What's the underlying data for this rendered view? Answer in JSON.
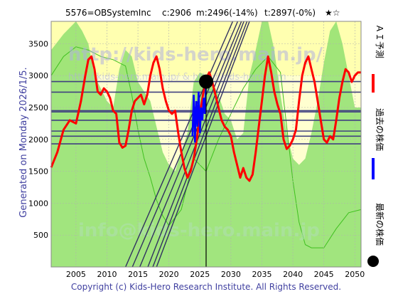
{
  "header": {
    "title": "5576=OBSystemInc",
    "close": "c:2906",
    "min": "m:2496(-14%)",
    "target": "t:2897(-0%)",
    "rating": "★☆"
  },
  "side_label": "Generated on Monday 2026/1/5.",
  "copyright": "Copyright (c) Kids-Hero Research Institute. All Rights Reserved.",
  "watermarks": {
    "main": "http://kids-hero.main.jp/",
    "sub": "http://kids-hero.main.jp/ & http://kids-hero.com",
    "info": "info@kids-hero.main.jp"
  },
  "legend": {
    "ai_label": "ＡＩ予測",
    "past_label": "過去の株価",
    "latest_label": "最新の株価"
  },
  "colors": {
    "plot_bg": "#ffffd0",
    "upper_band": "#ffffb0",
    "green_fill": "#90e070",
    "green_line": "#40c020",
    "ai": "#ff0000",
    "past": "#0000ff",
    "latest": "#000000",
    "hlines": "#404080",
    "diag": "#303060",
    "vgrid": "#b0b0b0"
  },
  "chart_data": {
    "type": "line",
    "xlim": [
      2001,
      2051
    ],
    "ylim": [
      0,
      3850
    ],
    "x_ticks": [
      "2005",
      "2010",
      "2015",
      "2020",
      "2025",
      "2030",
      "2035",
      "2040",
      "2045",
      "2050"
    ],
    "y_ticks": [
      "500",
      "1000",
      "1500",
      "2000",
      "2500",
      "3000",
      "3500"
    ],
    "horizontal_levels": [
      2906,
      2740,
      2450,
      2430,
      2300,
      2130,
      2050,
      1930
    ],
    "latest_point": {
      "x": 2026.0,
      "y": 2906
    },
    "vertical_marker_x": 2026.0,
    "series": [
      {
        "role": "ai_prediction",
        "x": [
          2001.0,
          2002.0,
          2003.0,
          2004.0,
          2005.0,
          2005.8,
          2006.5,
          2007.0,
          2007.5,
          2008.0,
          2008.5,
          2009.0,
          2009.5,
          2010.0,
          2010.5,
          2011.0,
          2011.5,
          2012.0,
          2012.5,
          2013.0,
          2013.5,
          2014.0,
          2014.5,
          2015.0,
          2015.5,
          2016.0,
          2016.5,
          2017.0,
          2017.5,
          2018.0,
          2018.5,
          2019.0,
          2019.5,
          2020.0,
          2020.5,
          2021.0,
          2021.5,
          2022.0,
          2022.5,
          2023.0,
          2023.5,
          2024.0,
          2024.5,
          2025.0,
          2025.5,
          2026.0,
          2026.5,
          2027.0,
          2027.5,
          2028.0,
          2028.5,
          2029.0,
          2029.5,
          2030.0,
          2030.5,
          2031.0,
          2031.5,
          2032.0,
          2032.5,
          2033.0,
          2033.5,
          2034.0,
          2034.5,
          2035.0,
          2035.5,
          2036.0,
          2036.5,
          2037.0,
          2037.5,
          2038.0,
          2038.5,
          2039.0,
          2039.5,
          2040.0,
          2040.5,
          2041.0,
          2041.5,
          2042.0,
          2042.5,
          2043.0,
          2043.5,
          2044.0,
          2044.5,
          2045.0,
          2045.5,
          2046.0,
          2046.5,
          2047.0,
          2047.5,
          2048.0,
          2048.5,
          2049.0,
          2049.5,
          2050.0,
          2050.5,
          2051.0
        ],
        "values": [
          1560,
          1800,
          2150,
          2300,
          2250,
          2600,
          3000,
          3250,
          3300,
          3100,
          2750,
          2700,
          2800,
          2750,
          2650,
          2450,
          2400,
          1950,
          1870,
          1900,
          2150,
          2450,
          2600,
          2650,
          2700,
          2550,
          2700,
          3000,
          3200,
          3300,
          3100,
          2800,
          2600,
          2450,
          2400,
          2450,
          2100,
          1800,
          1550,
          1400,
          1500,
          1700,
          2000,
          2400,
          2700,
          2950,
          3050,
          2900,
          2700,
          2500,
          2300,
          2200,
          2150,
          2050,
          1800,
          1600,
          1400,
          1550,
          1400,
          1350,
          1450,
          1800,
          2200,
          2600,
          3000,
          3300,
          3050,
          2750,
          2550,
          2400,
          2000,
          1850,
          1900,
          2000,
          2150,
          2600,
          3000,
          3200,
          3300,
          3100,
          2900,
          2600,
          2300,
          2000,
          1950,
          2050,
          2000,
          2300,
          2650,
          2900,
          3100,
          3050,
          2900,
          3000,
          3050,
          3050
        ]
      },
      {
        "role": "past_price",
        "x": [
          2023.8,
          2024.0,
          2024.2,
          2024.4,
          2024.6,
          2024.8,
          2025.0,
          2025.2,
          2025.4,
          2025.6,
          2025.8,
          2026.0
        ],
        "values": [
          2050,
          2700,
          1950,
          2600,
          2200,
          2750,
          2100,
          2500,
          2300,
          2650,
          2400,
          2906
        ]
      },
      {
        "role": "green_band_upper",
        "x": [
          2001,
          2003,
          2005,
          2006,
          2007,
          2008,
          2010,
          2011,
          2012,
          2013,
          2014,
          2015,
          2017,
          2018,
          2019,
          2020,
          2021,
          2022,
          2023,
          2024,
          2025,
          2026,
          2027,
          2028,
          2029,
          2030,
          2031,
          2032,
          2033,
          2034,
          2035,
          2036,
          2037,
          2038,
          2039,
          2040,
          2041,
          2042,
          2043,
          2044,
          2045,
          2046,
          2047,
          2048,
          2049,
          2050,
          2051
        ],
        "values": [
          3400,
          3650,
          3850,
          3700,
          3500,
          3000,
          2600,
          2500,
          3100,
          3400,
          3300,
          2900,
          2600,
          2200,
          1800,
          1600,
          1500,
          1800,
          2100,
          2900,
          3050,
          3000,
          2900,
          2700,
          2400,
          2300,
          2000,
          2100,
          3000,
          3400,
          3850,
          3850,
          3400,
          2700,
          2100,
          1700,
          1600,
          1700,
          2100,
          2600,
          3200,
          3700,
          3850,
          3500,
          3000,
          2500,
          2500
        ]
      },
      {
        "role": "green_line",
        "x": [
          2001,
          2003,
          2005,
          2007,
          2009,
          2011,
          2013,
          2014,
          2015,
          2016,
          2017,
          2018,
          2019,
          2020,
          2022,
          2024,
          2026,
          2028,
          2030,
          2032,
          2034,
          2036,
          2038,
          2039,
          2040,
          2041,
          2042,
          2043,
          2045,
          2047,
          2049,
          2051
        ],
        "values": [
          3000,
          3300,
          3450,
          3400,
          3300,
          3250,
          3150,
          2700,
          2150,
          1700,
          1400,
          1050,
          800,
          650,
          900,
          1700,
          1500,
          2000,
          2400,
          2800,
          3100,
          3300,
          3050,
          2200,
          1350,
          700,
          350,
          300,
          300,
          600,
          850,
          900
        ]
      },
      {
        "role": "trend_lines",
        "lines": [
          {
            "from": [
              2014.1,
              0
            ],
            "to": [
              2031.1,
              3850
            ]
          },
          {
            "from": [
              2015.3,
              0
            ],
            "to": [
              2031.7,
              3850
            ]
          },
          {
            "from": [
              2016.6,
              0
            ],
            "to": [
              2032.1,
              3850
            ]
          },
          {
            "from": [
              2017.4,
              0
            ],
            "to": [
              2032.6,
              3850
            ]
          },
          {
            "from": [
              2018.0,
              0
            ],
            "to": [
              2033.0,
              3850
            ]
          },
          {
            "from": [
              2013.0,
              0
            ],
            "to": [
              2030.3,
              3850
            ]
          }
        ]
      }
    ]
  }
}
